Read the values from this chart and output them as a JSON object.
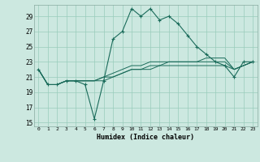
{
  "title": "",
  "xlabel": "Humidex (Indice chaleur)",
  "background_color": "#cce8e0",
  "grid_color": "#99ccbb",
  "line_color": "#1a6b5a",
  "xlim": [
    -0.5,
    23.5
  ],
  "ylim": [
    14.5,
    30.5
  ],
  "xticks": [
    0,
    1,
    2,
    3,
    4,
    5,
    6,
    7,
    8,
    9,
    10,
    11,
    12,
    13,
    14,
    15,
    16,
    17,
    18,
    19,
    20,
    21,
    22,
    23
  ],
  "yticks": [
    15,
    17,
    19,
    21,
    23,
    25,
    27,
    29
  ],
  "main_y": [
    22,
    20,
    20,
    20.5,
    20.5,
    20,
    15.5,
    20.5,
    26,
    27,
    30,
    29,
    30,
    28.5,
    29,
    28,
    26.5,
    25,
    24,
    23,
    22.5,
    21,
    23,
    23
  ],
  "line2_y": [
    22,
    20,
    20,
    20.5,
    20.5,
    20.5,
    20.5,
    20.5,
    21,
    21.5,
    22,
    22,
    22.5,
    22.5,
    23,
    23,
    23,
    23,
    23.5,
    23.5,
    23.5,
    22,
    22.5,
    23
  ],
  "line3_y": [
    22,
    20,
    20,
    20.5,
    20.5,
    20.5,
    20.5,
    21,
    21.5,
    22,
    22.5,
    22.5,
    23,
    23,
    23,
    23,
    23,
    23,
    23,
    23,
    23,
    22,
    22.5,
    23
  ],
  "line4_y": [
    22,
    20,
    20,
    20.5,
    20.5,
    20.5,
    20.5,
    21,
    21,
    21.5,
    22,
    22,
    22,
    22.5,
    22.5,
    22.5,
    22.5,
    22.5,
    22.5,
    22.5,
    22.5,
    22,
    22.5,
    23
  ]
}
